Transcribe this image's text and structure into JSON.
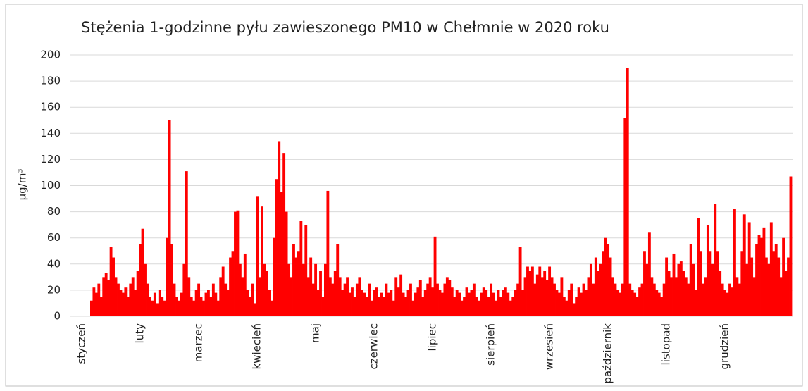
{
  "chart_data": {
    "type": "bar",
    "title": "Stężenia 1-godzinne pyłu zawieszonego  PM10 w Chełmnie  w 2020 roku",
    "y_label": "µg/m³",
    "color": "#ff0000",
    "categories": [
      "styczeń",
      "luty",
      "marzec",
      "kwiecień",
      "maj",
      "czerwiec",
      "lipiec",
      "sierpień",
      "wrzesień",
      "październik",
      "listopad",
      "grudzień"
    ],
    "values": [
      [
        12,
        22,
        18,
        25,
        15,
        30,
        33,
        28,
        53,
        45,
        30,
        25,
        20,
        18,
        22,
        15,
        25,
        30,
        20,
        35,
        55,
        67,
        40,
        25
      ],
      [
        15,
        12,
        18,
        10,
        20,
        15,
        12,
        60,
        150,
        55,
        25,
        15,
        12,
        18,
        40,
        111,
        30,
        15,
        12,
        20,
        25,
        15,
        12,
        18
      ],
      [
        20,
        15,
        25,
        18,
        12,
        30,
        38,
        25,
        20,
        45,
        50,
        80,
        81,
        40,
        30,
        48,
        20,
        15,
        25,
        10,
        92,
        30,
        84,
        40
      ],
      [
        35,
        20,
        12,
        60,
        105,
        134,
        95,
        125,
        80,
        40,
        30,
        55,
        45,
        50,
        73,
        40,
        70,
        30,
        45,
        25,
        40,
        20,
        35,
        15
      ],
      [
        40,
        96,
        30,
        25,
        35,
        55,
        30,
        20,
        25,
        30,
        18,
        22,
        15,
        25,
        30,
        20,
        18,
        15,
        25,
        12,
        20,
        22,
        15,
        18
      ],
      [
        15,
        25,
        18,
        20,
        12,
        30,
        22,
        32,
        18,
        15,
        20,
        25,
        12,
        18,
        22,
        28,
        15,
        20,
        25,
        30,
        22,
        61,
        25,
        20
      ],
      [
        18,
        25,
        30,
        28,
        22,
        15,
        20,
        18,
        12,
        15,
        22,
        18,
        20,
        25,
        15,
        12,
        18,
        22,
        20,
        15,
        25,
        18,
        12,
        20
      ],
      [
        15,
        20,
        22,
        18,
        12,
        15,
        20,
        25,
        53,
        20,
        30,
        38,
        35,
        38,
        25,
        32,
        38,
        30,
        35,
        28,
        38,
        30,
        25,
        20
      ],
      [
        18,
        30,
        15,
        12,
        20,
        25,
        10,
        15,
        22,
        18,
        25,
        20,
        30,
        40,
        25,
        45,
        35,
        40,
        50,
        60,
        55,
        45,
        30,
        25
      ],
      [
        20,
        18,
        25,
        152,
        190,
        25,
        20,
        18,
        15,
        22,
        25,
        50,
        40,
        64,
        30,
        25,
        20,
        18,
        15,
        25,
        45,
        35,
        30,
        48
      ],
      [
        30,
        40,
        42,
        35,
        30,
        25,
        55,
        40,
        20,
        75,
        50,
        25,
        30,
        70,
        50,
        40,
        86,
        50,
        35,
        25,
        20,
        18,
        25,
        22
      ],
      [
        82,
        30,
        25,
        50,
        78,
        40,
        72,
        45,
        30,
        55,
        62,
        60,
        68,
        45,
        40,
        72,
        50,
        55,
        45,
        30,
        60,
        35,
        45,
        107
      ]
    ],
    "ylim": [
      0,
      200
    ],
    "yticks": [
      0,
      20,
      40,
      60,
      80,
      100,
      120,
      140,
      160,
      180,
      200
    ],
    "grid": true
  }
}
